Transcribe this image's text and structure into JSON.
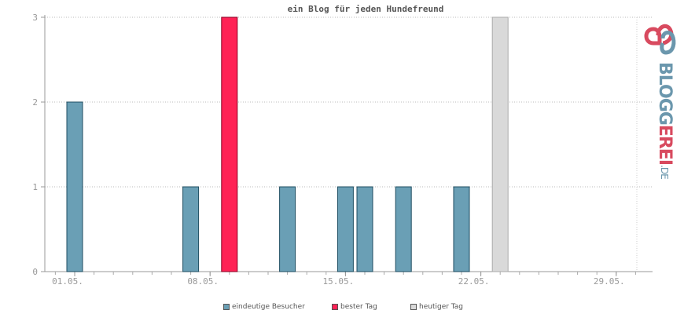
{
  "chart_data": {
    "type": "bar",
    "title": "ein Blog für jeden Hundefreund",
    "x_ticks": [
      "01.05.",
      "08.05.",
      "15.05.",
      "22.05.",
      "29.05."
    ],
    "ylim": [
      0,
      3
    ],
    "y_ticks": [
      "0",
      "1",
      "2",
      "3"
    ],
    "grid": true,
    "legend_position": "bottom-center",
    "series": [
      {
        "name": "eindeutige Besucher",
        "color": "#6a9fb5",
        "points": [
          {
            "date": "01.05.",
            "value": 2
          },
          {
            "date": "07.05.",
            "value": 1
          },
          {
            "date": "12.05.",
            "value": 1
          },
          {
            "date": "15.05.",
            "value": 1
          },
          {
            "date": "16.05.",
            "value": 1
          },
          {
            "date": "18.05.",
            "value": 1
          },
          {
            "date": "21.05.",
            "value": 1
          }
        ]
      },
      {
        "name": "bester Tag",
        "color": "#ff2255",
        "points": [
          {
            "date": "09.05.",
            "value": 3
          }
        ]
      },
      {
        "name": "heutiger Tag",
        "color": "#d9d9d9",
        "points": [
          {
            "date": "23.05.",
            "value": 3
          }
        ]
      }
    ]
  },
  "brand": {
    "logo_text_a": "BLOGG",
    "logo_text_b": "EREI",
    "logo_tld": ".DE",
    "colors": {
      "primary": "#6b97ad",
      "accent": "#d84a5f"
    }
  }
}
